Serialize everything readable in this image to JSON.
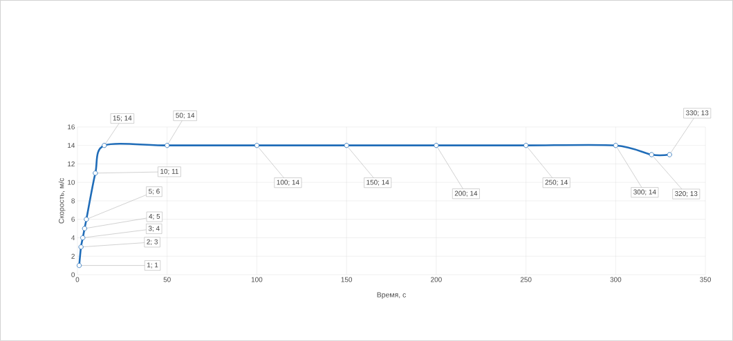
{
  "chart_data": {
    "type": "line",
    "xlabel": "Время, с",
    "ylabel": "Скорость, м/с",
    "x": [
      1,
      2,
      3,
      4,
      5,
      10,
      15,
      50,
      100,
      150,
      200,
      250,
      300,
      320,
      330
    ],
    "series": [
      {
        "color": "#1f6cb8",
        "values": [
          1,
          3,
          4,
          5,
          6,
          11,
          14,
          14,
          14,
          14,
          14,
          14,
          14,
          13,
          13
        ],
        "value_labels": [
          "1; 1",
          "2; 3",
          "3; 4",
          "4; 5",
          "5; 6",
          "10; 11",
          "15; 14",
          "50; 14",
          "100; 14",
          "150; 14",
          "200; 14",
          "250; 14",
          "300; 14",
          "320; 13",
          "330; 13"
        ]
      }
    ],
    "xlim": [
      0,
      350
    ],
    "xticks": [
      0,
      50,
      100,
      150,
      200,
      250,
      300,
      350
    ],
    "ylim": [
      0,
      16
    ],
    "yticks": [
      0,
      2,
      4,
      6,
      8,
      10,
      12,
      14,
      16
    ],
    "grid": true,
    "marker": "circle",
    "line_style": "solid"
  }
}
